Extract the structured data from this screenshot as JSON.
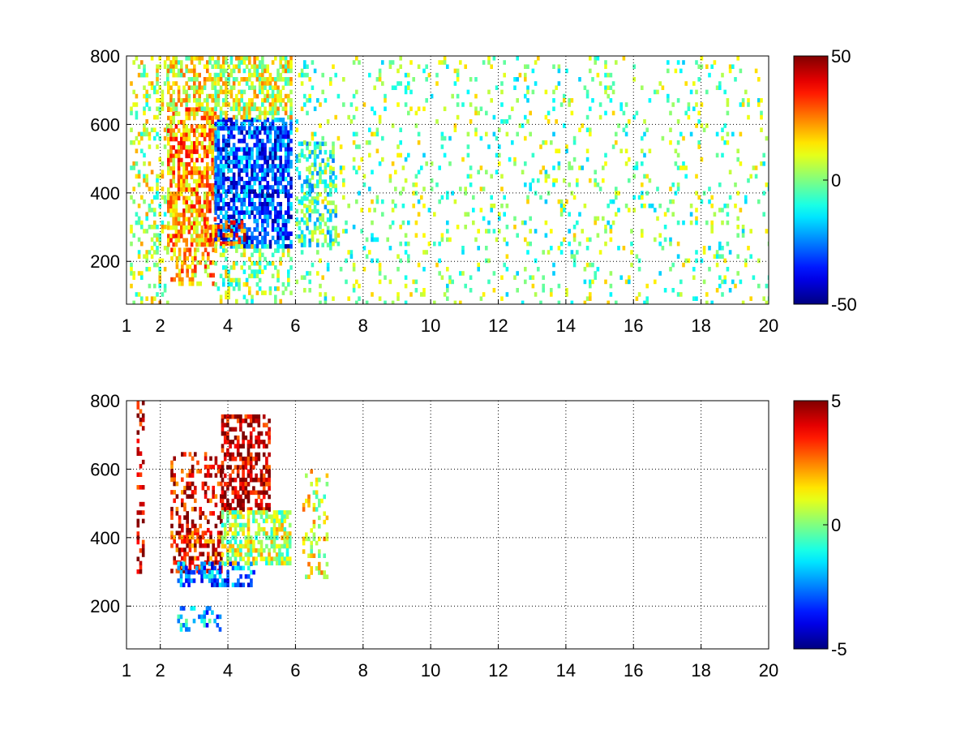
{
  "chart_data": [
    {
      "type": "heatmap",
      "title": "",
      "xlabel": "",
      "ylabel": "",
      "xlim": [
        1,
        20
      ],
      "ylim": [
        75,
        800
      ],
      "grid": true,
      "x_ticks": [
        "1",
        "2",
        "4",
        "6",
        "8",
        "10",
        "12",
        "14",
        "16",
        "18",
        "20"
      ],
      "y_ticks": [
        "200",
        "400",
        "600",
        "800"
      ],
      "colorbar": {
        "min": -50,
        "max": 50,
        "ticks": [
          "50",
          "0",
          "-50"
        ],
        "colormap": "jet"
      },
      "regions": [
        {
          "x": [
            1.1,
            2.2
          ],
          "y": [
            80,
            800
          ],
          "value": 6,
          "density": 0.28
        },
        {
          "x": [
            2.2,
            3.6
          ],
          "y": [
            250,
            650
          ],
          "value": 22,
          "density": 0.7
        },
        {
          "x": [
            2.2,
            3.6
          ],
          "y": [
            650,
            800
          ],
          "value": 10,
          "density": 0.55
        },
        {
          "x": [
            2.3,
            3.6
          ],
          "y": [
            140,
            240
          ],
          "value": 18,
          "density": 0.5
        },
        {
          "x": [
            3.6,
            5.9
          ],
          "y": [
            250,
            620
          ],
          "value": -30,
          "density": 0.7
        },
        {
          "x": [
            3.6,
            5.9
          ],
          "y": [
            620,
            800
          ],
          "value": 8,
          "density": 0.6
        },
        {
          "x": [
            3.3,
            4.5
          ],
          "y": [
            250,
            320
          ],
          "value": 30,
          "density": 0.5
        },
        {
          "x": [
            3.6,
            5.9
          ],
          "y": [
            80,
            250
          ],
          "value": 2,
          "density": 0.3
        },
        {
          "x": [
            6.0,
            7.2
          ],
          "y": [
            250,
            550
          ],
          "value": -8,
          "density": 0.4
        },
        {
          "x": [
            6.0,
            20
          ],
          "y": [
            80,
            800
          ],
          "value": 0,
          "density": 0.1
        }
      ]
    },
    {
      "type": "heatmap",
      "title": "",
      "xlabel": "",
      "ylabel": "",
      "xlim": [
        1,
        20
      ],
      "ylim": [
        75,
        800
      ],
      "grid": true,
      "x_ticks": [
        "1",
        "2",
        "4",
        "6",
        "8",
        "10",
        "12",
        "14",
        "16",
        "18",
        "20"
      ],
      "y_ticks": [
        "200",
        "400",
        "600",
        "800"
      ],
      "colorbar": {
        "min": -5,
        "max": 5,
        "ticks": [
          "5",
          "0",
          "-5"
        ],
        "colormap": "jet"
      },
      "regions": [
        {
          "x": [
            1.3,
            1.5
          ],
          "y": [
            300,
            800
          ],
          "value": 4.5,
          "density": 0.3
        },
        {
          "x": [
            2.3,
            3.8
          ],
          "y": [
            300,
            420
          ],
          "value": 3.5,
          "density": 0.6
        },
        {
          "x": [
            2.3,
            3.8
          ],
          "y": [
            420,
            650
          ],
          "value": 4.0,
          "density": 0.3
        },
        {
          "x": [
            3.8,
            5.2
          ],
          "y": [
            480,
            760
          ],
          "value": 4.5,
          "density": 0.6
        },
        {
          "x": [
            3.8,
            5.8
          ],
          "y": [
            330,
            480
          ],
          "value": 0.5,
          "density": 0.6
        },
        {
          "x": [
            2.5,
            4.8
          ],
          "y": [
            260,
            330
          ],
          "value": -2.5,
          "density": 0.5
        },
        {
          "x": [
            2.5,
            3.8
          ],
          "y": [
            130,
            200
          ],
          "value": -2.0,
          "density": 0.3
        },
        {
          "x": [
            6.2,
            6.9
          ],
          "y": [
            280,
            600
          ],
          "value": 1.0,
          "density": 0.25
        }
      ]
    }
  ]
}
